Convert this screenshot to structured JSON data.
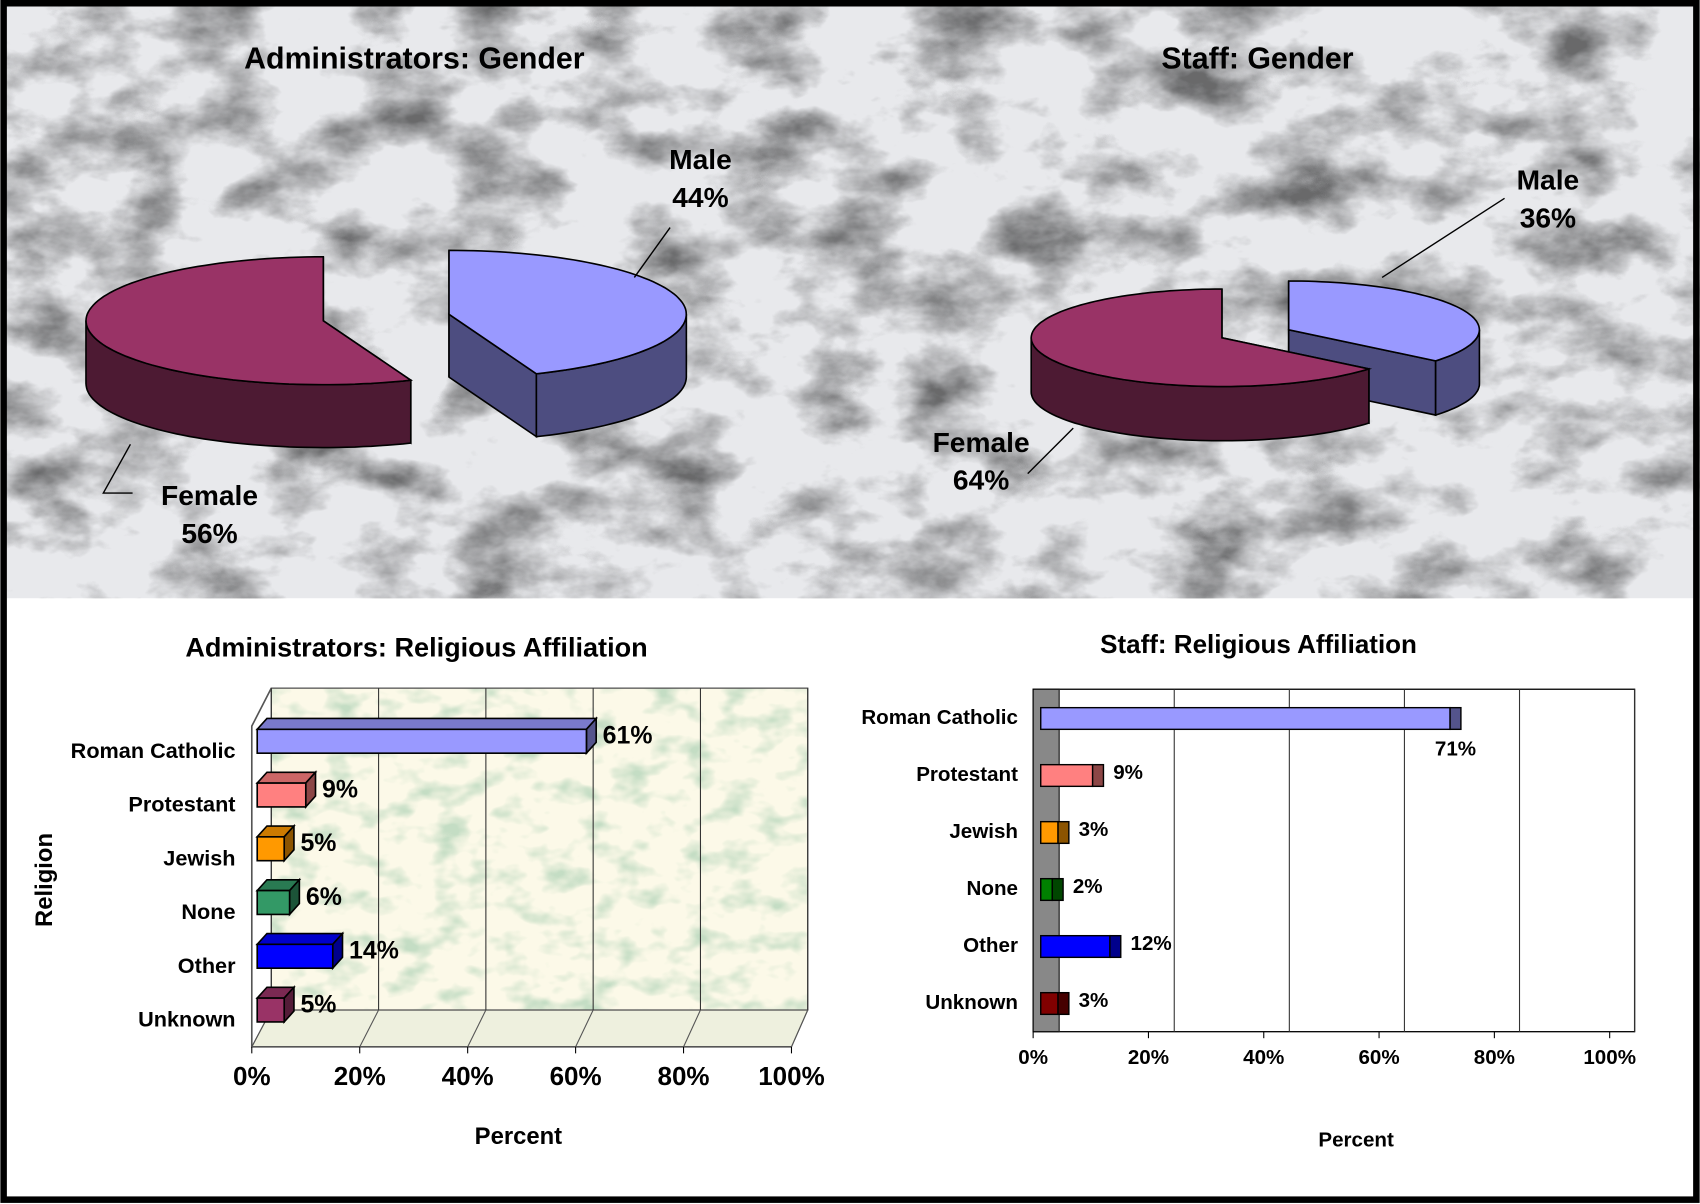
{
  "chart_data": [
    {
      "type": "pie",
      "title": "Administrators: Gender",
      "categories": [
        "Male",
        "Female"
      ],
      "values": [
        44,
        56
      ],
      "value_labels": [
        "44%",
        "56%"
      ],
      "colors": [
        "#9999ff",
        "#993366"
      ]
    },
    {
      "type": "pie",
      "title": "Staff: Gender",
      "categories": [
        "Male",
        "Female"
      ],
      "values": [
        36,
        64
      ],
      "value_labels": [
        "36%",
        "64%"
      ],
      "colors": [
        "#9999ff",
        "#993366"
      ]
    },
    {
      "type": "bar",
      "title": "Administrators: Religious Affiliation",
      "categories": [
        "Roman Catholic",
        "Protestant",
        "Jewish",
        "None",
        "Other",
        "Unknown"
      ],
      "values": [
        61,
        9,
        5,
        6,
        14,
        5
      ],
      "value_labels": [
        "61%",
        "9%",
        "5%",
        "6%",
        "14%",
        "5%"
      ],
      "colors": [
        "#9999ff",
        "#ff8080",
        "#ff9900",
        "#339966",
        "#0000ff",
        "#993366"
      ],
      "xlim": [
        0,
        100
      ],
      "xticks": [
        {
          "value": 0,
          "label": "0%"
        },
        {
          "value": 20,
          "label": "20%"
        },
        {
          "value": 40,
          "label": "40%"
        },
        {
          "value": 60,
          "label": "60%"
        },
        {
          "value": 80,
          "label": "80%"
        },
        {
          "value": 100,
          "label": "100%"
        }
      ],
      "xlabel": "Percent",
      "ylabel": "Religion",
      "grid": true
    },
    {
      "type": "bar",
      "title": "Staff: Religious Affiliation",
      "categories": [
        "Roman Catholic",
        "Protestant",
        "Jewish",
        "None",
        "Other",
        "Unknown"
      ],
      "values": [
        71,
        9,
        3,
        2,
        12,
        3
      ],
      "value_labels": [
        "71%",
        "9%",
        "3%",
        "2%",
        "12%",
        "3%"
      ],
      "colors": [
        "#9999ff",
        "#ff8080",
        "#ff9900",
        "#008000",
        "#0000ff",
        "#800000"
      ],
      "xlim": [
        0,
        100
      ],
      "xticks": [
        {
          "value": 0,
          "label": "0%"
        },
        {
          "value": 20,
          "label": "20%"
        },
        {
          "value": 40,
          "label": "40%"
        },
        {
          "value": 60,
          "label": "60%"
        },
        {
          "value": 80,
          "label": "80%"
        },
        {
          "value": 100,
          "label": "100%"
        }
      ],
      "xlabel": "Percent",
      "grid": true
    }
  ]
}
